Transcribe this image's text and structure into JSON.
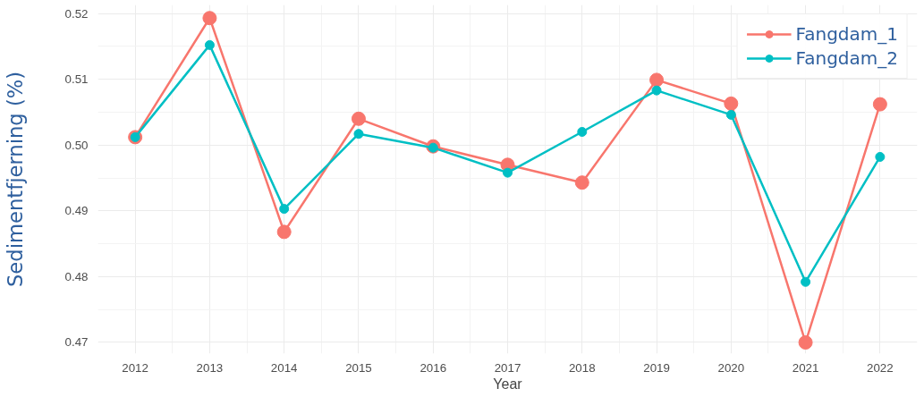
{
  "chart_data": {
    "type": "line",
    "xlabel": "Year",
    "ylabel": "Sedimentfjerning (%)",
    "x": [
      2012,
      2013,
      2014,
      2015,
      2016,
      2017,
      2018,
      2019,
      2020,
      2021,
      2022
    ],
    "series": [
      {
        "name": "Fangdam_1",
        "color": "#f8766d",
        "values": [
          0.5012,
          0.5193,
          0.4868,
          0.504,
          0.4998,
          0.497,
          0.4943,
          0.5099,
          0.5063,
          0.47,
          0.5062
        ]
      },
      {
        "name": "Fangdam_2",
        "color": "#00bfc4",
        "values": [
          0.5012,
          0.5152,
          0.4903,
          0.5017,
          0.4996,
          0.4958,
          0.502,
          0.5083,
          0.5046,
          0.4792,
          0.4982
        ]
      }
    ],
    "xlim": [
      2011.5,
      2022.5
    ],
    "xticks": [
      2012,
      2013,
      2014,
      2015,
      2016,
      2017,
      2018,
      2019,
      2020,
      2021,
      2022
    ],
    "ylim": [
      0.4683,
      0.5213
    ],
    "yticks": [
      {
        "value": 0.47,
        "label": "0.47"
      },
      {
        "value": 0.48,
        "label": "0.48"
      },
      {
        "value": 0.49,
        "label": "0.49"
      },
      {
        "value": 0.5,
        "label": "0.50"
      },
      {
        "value": 0.51,
        "label": "0.51"
      },
      {
        "value": 0.52,
        "label": "0.52"
      }
    ],
    "grid": true,
    "legend": "top right",
    "marker": "circle",
    "line_style": "solid"
  }
}
